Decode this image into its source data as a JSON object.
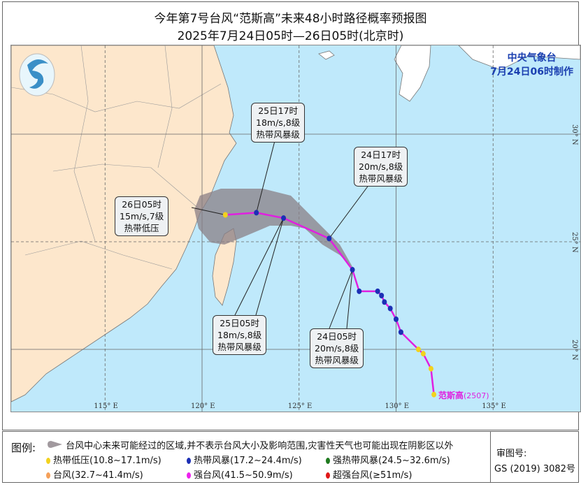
{
  "title": "今年第7号台风“范斯高”未来48小时路径概率预报图",
  "subtitle": "2025年7月24日05时—26日05时(北京时)",
  "agency": {
    "name": "中央气象台",
    "issued": "7月24日06时制作"
  },
  "typhoon": {
    "name": "范斯高",
    "code": "(2507)"
  },
  "axes": {
    "lon_ticks": [
      "115° E",
      "120° E",
      "125° E",
      "130° E",
      "135° E"
    ],
    "lat_ticks": [
      "30° N",
      "25° N",
      "20° N"
    ]
  },
  "track": [
    {
      "lon": 131.95,
      "lat": 17.9,
      "level": "td"
    },
    {
      "lon": 131.8,
      "lat": 19.1,
      "level": "td"
    },
    {
      "lon": 131.4,
      "lat": 19.8,
      "level": "td"
    },
    {
      "lon": 131.15,
      "lat": 20.0,
      "level": "td"
    },
    {
      "lon": 130.25,
      "lat": 20.8,
      "level": "ts"
    },
    {
      "lon": 130.0,
      "lat": 21.4,
      "level": "ts"
    },
    {
      "lon": 129.7,
      "lat": 21.9,
      "level": "ts"
    },
    {
      "lon": 129.4,
      "lat": 22.2,
      "level": "ts"
    },
    {
      "lon": 129.25,
      "lat": 22.5,
      "level": "ts"
    },
    {
      "lon": 129.05,
      "lat": 22.7,
      "level": "ts"
    },
    {
      "lon": 128.1,
      "lat": 22.7,
      "level": "ts"
    },
    {
      "lon": 127.75,
      "lat": 23.7,
      "level": "ts"
    },
    {
      "lon": 126.55,
      "lat": 25.15,
      "level": "ts"
    },
    {
      "lon": 124.2,
      "lat": 26.1,
      "level": "ts"
    },
    {
      "lon": 122.8,
      "lat": 26.35,
      "level": "ts"
    },
    {
      "lon": 121.2,
      "lat": 26.25,
      "level": "td"
    }
  ],
  "callouts": [
    {
      "time": "25日17时",
      "wind": "18m/s,8级",
      "level": "热带风暴级"
    },
    {
      "time": "24日17时",
      "wind": "20m/s,8级",
      "level": "热带风暴级"
    },
    {
      "time": "26日05时",
      "wind": "15m/s,7级",
      "level": "热带低压"
    },
    {
      "time": "25日05时",
      "wind": "18m/s,8级",
      "level": "热带风暴级"
    },
    {
      "time": "24日05时",
      "wind": "20m/s,8级",
      "level": "热带风暴级"
    }
  ],
  "colors": {
    "td": "#f2d21e",
    "ts": "#1c2fb5",
    "sts": "#1f7a1f",
    "ty": "#f5a05a",
    "sty": "#ee22ee",
    "superty": "#e01818",
    "track": "#e020e0",
    "sea": "#bfe9fb",
    "land": "#fde7cc",
    "cone": "#8a7f86"
  },
  "legend": {
    "label": "图例:",
    "cone": "台风中心未来可能经过的区域,并不表示台风大小及影响范围,灾害性天气也可能出现在阴影区以外",
    "items": [
      {
        "key": "td",
        "text": "热带低压(10.8~17.1m/s)"
      },
      {
        "key": "ts",
        "text": "热带风暴(17.2~24.4m/s)"
      },
      {
        "key": "sts",
        "text": "强热带风暴(24.5~32.6m/s)"
      },
      {
        "key": "ty",
        "text": "台风(32.7~41.4m/s)"
      },
      {
        "key": "sty",
        "text": "强台风(41.5~50.9m/s)"
      },
      {
        "key": "superty",
        "text": "超强台风(≥51m/s)"
      }
    ],
    "review_label": "审图号:",
    "review_no": "GS (2019) 3082号"
  }
}
